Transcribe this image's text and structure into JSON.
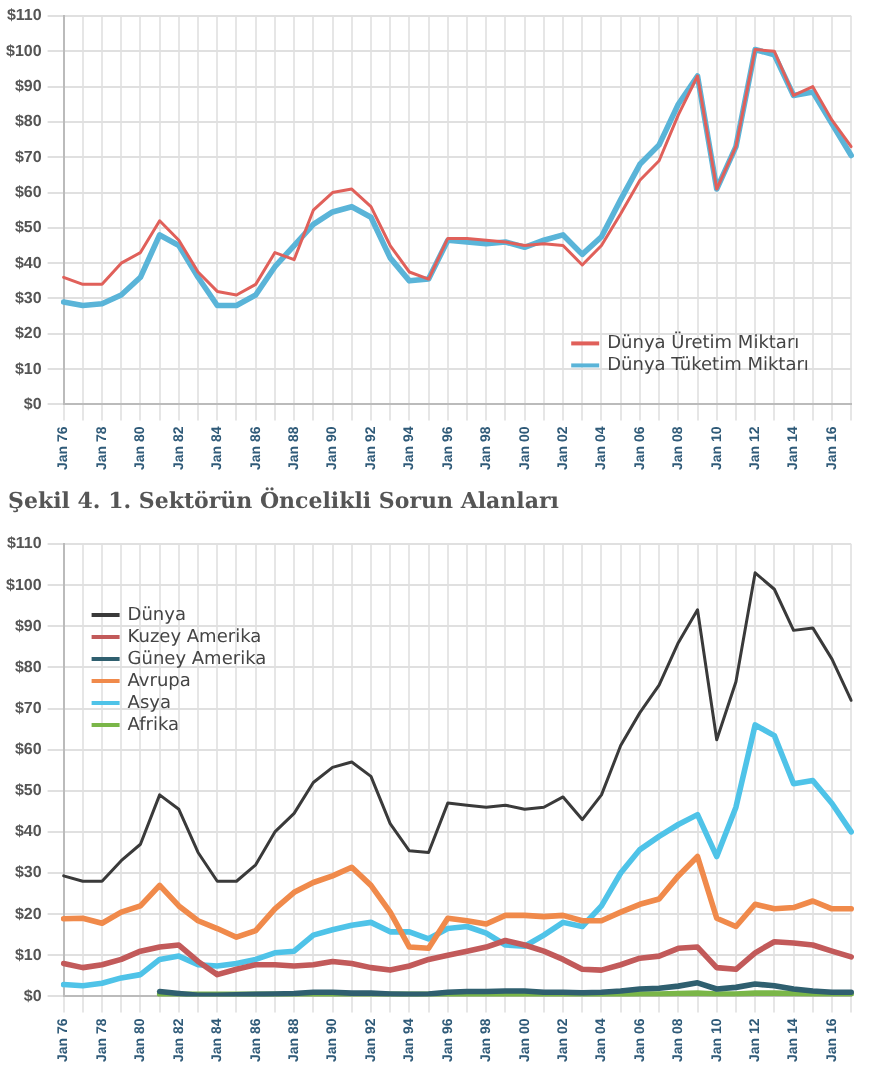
{
  "chart_data": [
    {
      "type": "line",
      "categories": [
        "Jan 76",
        null,
        "Jan 78",
        null,
        "Jan 80",
        null,
        "Jan 82",
        null,
        "Jan 84",
        null,
        "Jan 86",
        null,
        "Jan 88",
        null,
        "Jan 90",
        null,
        "Jan 92",
        null,
        "Jan 94",
        null,
        "Jan 96",
        null,
        "Jan 98",
        null,
        "Jan 00",
        null,
        "Jan 02",
        null,
        "Jan 04",
        null,
        "Jan 06",
        null,
        "Jan 08",
        null,
        "Jan 10",
        null,
        "Jan 12",
        null,
        "Jan 14",
        null,
        "Jan 16",
        null
      ],
      "ylim": [
        0,
        110
      ],
      "yticks": [
        {
          "value": 0,
          "label": "$0"
        },
        {
          "value": 10,
          "label": "$10"
        },
        {
          "value": 20,
          "label": "$20"
        },
        {
          "value": 30,
          "label": "$30"
        },
        {
          "value": 40,
          "label": "$40"
        },
        {
          "value": 50,
          "label": "$50"
        },
        {
          "value": 60,
          "label": "$60"
        },
        {
          "value": 70,
          "label": "$70"
        },
        {
          "value": 80,
          "label": "$80"
        },
        {
          "value": 90,
          "label": "$90"
        },
        {
          "value": 100,
          "label": "$100"
        },
        {
          "value": 110,
          "label": "$110"
        }
      ],
      "grid": true,
      "legend": "bottom right",
      "marker": "none",
      "line_style": "solid",
      "series": [
        {
          "name": "Dünya Üretim Miktarı",
          "color": "#e0605a",
          "values": [
            36,
            34,
            34,
            40,
            43,
            52,
            46.5,
            37.5,
            32,
            31,
            34,
            43,
            41,
            55,
            60,
            61,
            56,
            45,
            37.5,
            35.5,
            47,
            47,
            46.5,
            46,
            45,
            45.5,
            45,
            39.5,
            45,
            54,
            63.5,
            69,
            82,
            93,
            61,
            73,
            100.5,
            100,
            87.5,
            90,
            80.5,
            73
          ]
        },
        {
          "name": "Dünya Tüketim Miktarı",
          "color": "#5ab4d8",
          "values": [
            29,
            28,
            28.5,
            31,
            36,
            48,
            45,
            36,
            28,
            28,
            31,
            39,
            45,
            51,
            54.5,
            56,
            53,
            41.5,
            35,
            35.5,
            46.5,
            46,
            45.5,
            46,
            44.5,
            46.5,
            48,
            42.5,
            47.5,
            58,
            68,
            73.5,
            85,
            93,
            61,
            73,
            100.5,
            99,
            87.5,
            88.5,
            79.5,
            70.5
          ]
        }
      ]
    },
    {
      "type": "line",
      "title": "Şekil 4. 1. Sektörün Öncelikli Sorun Alanları",
      "categories": [
        "Jan 76",
        null,
        "Jan 78",
        null,
        "Jan 80",
        null,
        "Jan 82",
        null,
        "Jan 84",
        null,
        "Jan 86",
        null,
        "Jan 88",
        null,
        "Jan 90",
        null,
        "Jan 92",
        null,
        "Jan 94",
        null,
        "Jan 96",
        null,
        "Jan 98",
        null,
        "Jan 00",
        null,
        "Jan 02",
        null,
        "Jan 04",
        null,
        "Jan 06",
        null,
        "Jan 08",
        null,
        "Jan 10",
        null,
        "Jan 12",
        null,
        "Jan 14",
        null,
        "Jan 16",
        null
      ],
      "ylim": [
        0,
        110
      ],
      "yticks": [
        {
          "value": 0,
          "label": "$0"
        },
        {
          "value": 10,
          "label": "$10"
        },
        {
          "value": 20,
          "label": "$20"
        },
        {
          "value": 30,
          "label": "$30"
        },
        {
          "value": 40,
          "label": "$40"
        },
        {
          "value": 50,
          "label": "$50"
        },
        {
          "value": 60,
          "label": "$60"
        },
        {
          "value": 70,
          "label": "$70"
        },
        {
          "value": 80,
          "label": "$80"
        },
        {
          "value": 90,
          "label": "$90"
        },
        {
          "value": 100,
          "label": "$100"
        },
        {
          "value": 110,
          "label": "$110"
        }
      ],
      "grid": true,
      "legend": "top left",
      "marker": "none",
      "line_style": "solid",
      "series": [
        {
          "name": "Dünya",
          "color": "#3a3a3a",
          "values": [
            29.3,
            28,
            28,
            33,
            37,
            49,
            45.5,
            35,
            28,
            28,
            32,
            40,
            44.5,
            52,
            55.7,
            57,
            53.5,
            42,
            35.4,
            35,
            47,
            46.5,
            46,
            46.5,
            45.5,
            46,
            48.5,
            43,
            49,
            61,
            69,
            75.7,
            86,
            94,
            62.4,
            76.5,
            103,
            99,
            89,
            89.6,
            82,
            72
          ]
        },
        {
          "name": "Kuzey Amerika",
          "color": "#c25a5a",
          "values": [
            8,
            7,
            7.7,
            9,
            11,
            12,
            12.5,
            8.5,
            5.3,
            6.6,
            7.7,
            7.7,
            7.4,
            7.7,
            8.5,
            8,
            7,
            6.4,
            7.4,
            9,
            10,
            11,
            12,
            13.6,
            12.5,
            11,
            9,
            6.6,
            6.4,
            7.7,
            9.3,
            9.8,
            11.7,
            12,
            7,
            6.6,
            10.6,
            13.3,
            13,
            12.5,
            11,
            9.6
          ]
        },
        {
          "name": "Güney Amerika",
          "color": "#2f5f6f",
          "values": [
            null,
            null,
            null,
            null,
            null,
            1.2,
            0.7,
            0.3,
            0.3,
            0.4,
            0.5,
            0.6,
            0.7,
            1,
            1,
            0.8,
            0.8,
            0.6,
            0.5,
            0.6,
            1,
            1.2,
            1.2,
            1.3,
            1.3,
            1,
            1,
            0.9,
            1,
            1.3,
            1.8,
            2,
            2.5,
            3.3,
            1.8,
            2.2,
            3,
            2.6,
            1.8,
            1.3,
            1,
            1
          ]
        },
        {
          "name": "Avrupa",
          "color": "#f08a4b",
          "values": [
            18.9,
            19,
            17.8,
            20.5,
            22,
            27,
            22,
            18.4,
            16.5,
            14.4,
            16,
            21.3,
            25.3,
            27.7,
            29.3,
            31.4,
            27,
            20.5,
            12,
            11.7,
            19,
            18.4,
            17.6,
            19.7,
            19.7,
            19.4,
            19.7,
            18.4,
            18.4,
            20.5,
            22.4,
            23.7,
            29.3,
            34,
            19,
            17,
            22.4,
            21.3,
            21.6,
            23.2,
            21.3,
            21.3
          ]
        },
        {
          "name": "Asya",
          "color": "#4fc3e8",
          "values": [
            2.9,
            2.6,
            3.2,
            4.5,
            5.3,
            9,
            9.8,
            7.7,
            7.4,
            8,
            9,
            10.6,
            11,
            14.9,
            16.2,
            17.3,
            18,
            15.7,
            15.7,
            14,
            16.5,
            17,
            15.4,
            12.5,
            12.2,
            14.9,
            18,
            17,
            22,
            30,
            35.7,
            38.9,
            41.8,
            44.2,
            34,
            46,
            66,
            63.4,
            51.7,
            52.5,
            46.9,
            40
          ]
        },
        {
          "name": "Afrika",
          "color": "#7ab648",
          "values": [
            null,
            null,
            null,
            null,
            null,
            0.5,
            0.5,
            0.5,
            0.5,
            0.5,
            0.5,
            0.5,
            0.5,
            0.5,
            0.5,
            0.5,
            0.5,
            0.5,
            0.5,
            0.5,
            0.5,
            0.5,
            0.5,
            0.5,
            0.5,
            0.5,
            0.5,
            0.5,
            0.5,
            0.5,
            0.6,
            0.6,
            0.7,
            0.8,
            0.6,
            0.6,
            0.8,
            0.8,
            0.7,
            0.6,
            0.6,
            0.6
          ]
        }
      ]
    }
  ]
}
